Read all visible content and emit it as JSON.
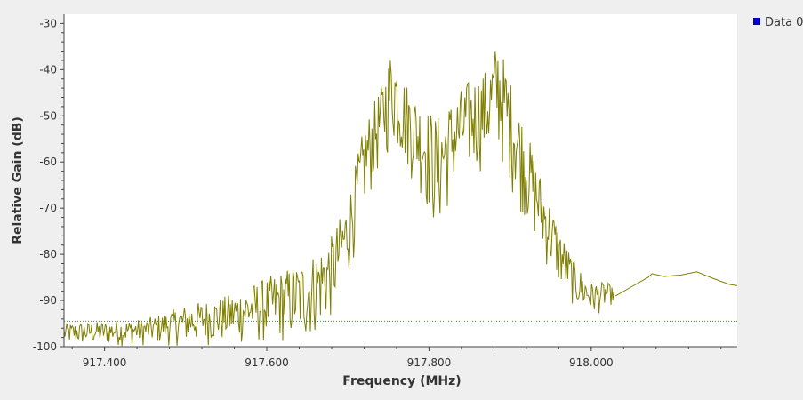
{
  "chart_data": {
    "type": "line",
    "title": "",
    "xlabel": "Frequency (MHz)",
    "ylabel": "Relative Gain (dB)",
    "xlim": [
      917.35,
      918.18
    ],
    "ylim": [
      -100,
      -28
    ],
    "x_ticks": [
      917.4,
      917.6,
      917.8,
      918.0
    ],
    "x_tick_labels": [
      "917.400",
      "917.600",
      "917.800",
      "918.000"
    ],
    "y_ticks": [
      -30,
      -40,
      -50,
      -60,
      -70,
      -80,
      -90,
      -100
    ],
    "y_tick_labels": [
      "-30",
      "-40",
      "-50",
      "-60",
      "-70",
      "-80",
      "-90",
      "-100"
    ],
    "grid": false,
    "legend_position": "top-right",
    "series": [
      {
        "name": "Data 0",
        "color": "#7f7f00",
        "envelope": {
          "x": [
            917.35,
            917.45,
            917.5,
            917.55,
            917.6,
            917.65,
            917.68,
            917.7,
            917.72,
            917.74,
            917.755,
            917.77,
            917.79,
            917.81,
            917.83,
            917.85,
            917.87,
            917.885,
            917.9,
            917.92,
            917.94,
            917.96,
            917.98,
            918.0,
            918.02,
            918.03
          ],
          "high": [
            -95,
            -94,
            -91,
            -89,
            -85,
            -81,
            -76,
            -68,
            -52,
            -44,
            -34,
            -42,
            -47,
            -50,
            -46,
            -42,
            -40,
            -33,
            -42,
            -53,
            -64,
            -74,
            -82,
            -86,
            -86,
            -88
          ],
          "low": [
            -100,
            -100,
            -100,
            -100,
            -100,
            -100,
            -95,
            -86,
            -72,
            -62,
            -58,
            -62,
            -68,
            -78,
            -68,
            -64,
            -62,
            -60,
            -66,
            -74,
            -82,
            -88,
            -92,
            -94,
            -92,
            -90
          ]
        },
        "smooth": {
          "x": [
            918.03,
            918.05,
            918.07,
            918.075,
            918.09,
            918.11,
            918.13,
            918.15,
            918.17,
            918.18
          ],
          "y": [
            -89,
            -87,
            -85,
            -84.2,
            -84.8,
            -84.5,
            -83.8,
            -85.2,
            -86.5,
            -86.8
          ]
        }
      }
    ],
    "reference_lines": [
      {
        "y": -94.5,
        "color": "#2ca02c",
        "style": "dotted"
      }
    ]
  }
}
